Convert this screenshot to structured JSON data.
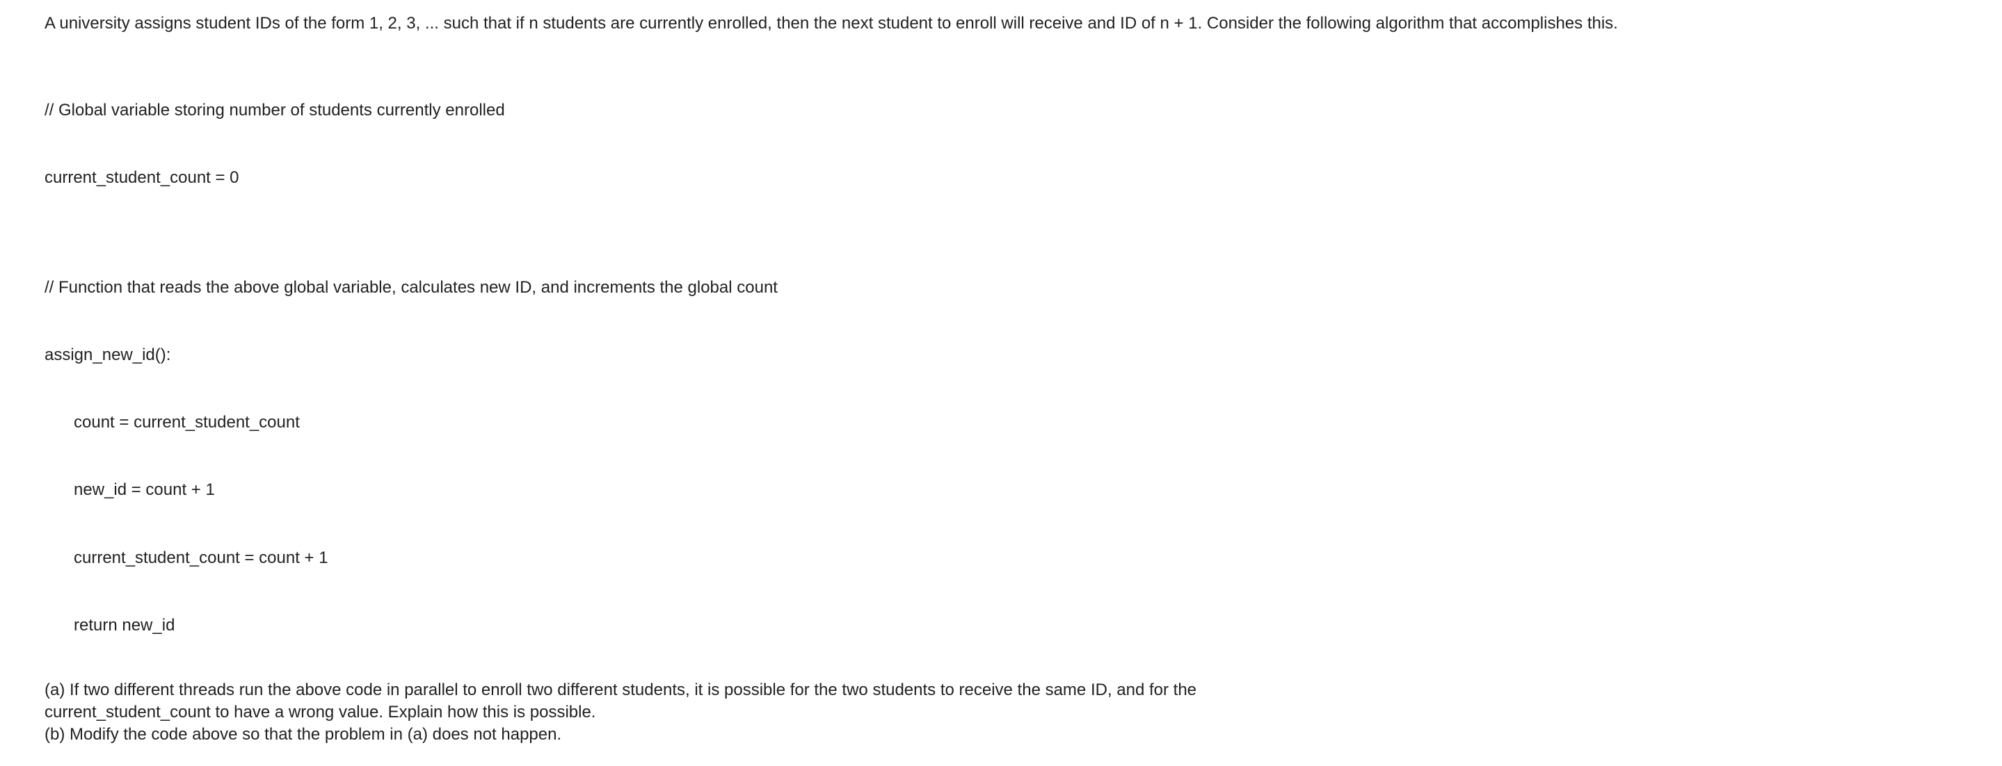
{
  "intro": "A university assigns student IDs of the form 1, 2, 3, ... such that if n students are currently enrolled, then the next student to enroll will receive and ID of  n + 1. Consider the following algorithm that accomplishes this.",
  "code1": {
    "comment": "// Global variable storing number of students currently enrolled",
    "line1": "current_student_count = 0"
  },
  "code2": {
    "comment": "// Function that reads the above global variable, calculates new ID, and increments the global count",
    "sig": "assign_new_id():",
    "b1": "count = current_student_count",
    "b2": "new_id = count + 1",
    "b3": "current_student_count = count + 1",
    "b4": "return new_id"
  },
  "qa1": "(a) If two different threads run the above code in parallel to enroll two different students, it is possible for the two students to receive the same ID, and for the",
  "qa2": "current_student_count to have a wrong value. Explain how this is possible.",
  "qb": "(b) Modify the code above so that the problem in (a) does not happen."
}
